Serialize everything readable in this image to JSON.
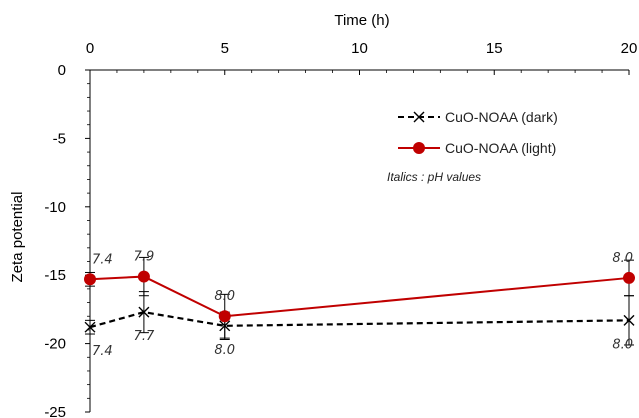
{
  "chart_data": {
    "type": "line",
    "title": "",
    "xlabel": "Time (h)",
    "ylabel": "Zeta potential",
    "xlim": [
      0,
      20
    ],
    "ylim": [
      -25,
      0
    ],
    "x_ticks": [
      0,
      5,
      10,
      15,
      20
    ],
    "y_ticks": [
      0,
      -5,
      -10,
      -15,
      -20,
      -25
    ],
    "x_axis_position": "top",
    "grid": false,
    "legend_position": "top-right",
    "note": "Italics : pH values",
    "series": [
      {
        "name": "CuO-NOAA (dark)",
        "color": "#000000",
        "line_style": "dashed",
        "marker": "x",
        "x": [
          0,
          2,
          5,
          20
        ],
        "y": [
          -18.8,
          -17.7,
          -18.7,
          -18.3
        ],
        "error": [
          0.5,
          1.5,
          1.0,
          1.8
        ],
        "ph_labels": [
          "7.4",
          "7.7",
          "8.0",
          "8.0"
        ]
      },
      {
        "name": "CuO-NOAA (light)",
        "color": "#c00000",
        "line_style": "solid",
        "marker": "circle",
        "x": [
          0,
          2,
          5,
          20
        ],
        "y": [
          -15.3,
          -15.1,
          -18.0,
          -15.2
        ],
        "error": [
          0.5,
          1.4,
          1.6,
          1.3
        ],
        "ph_labels": [
          "7.4",
          "7.9",
          "8.0",
          "8.0"
        ]
      }
    ]
  }
}
